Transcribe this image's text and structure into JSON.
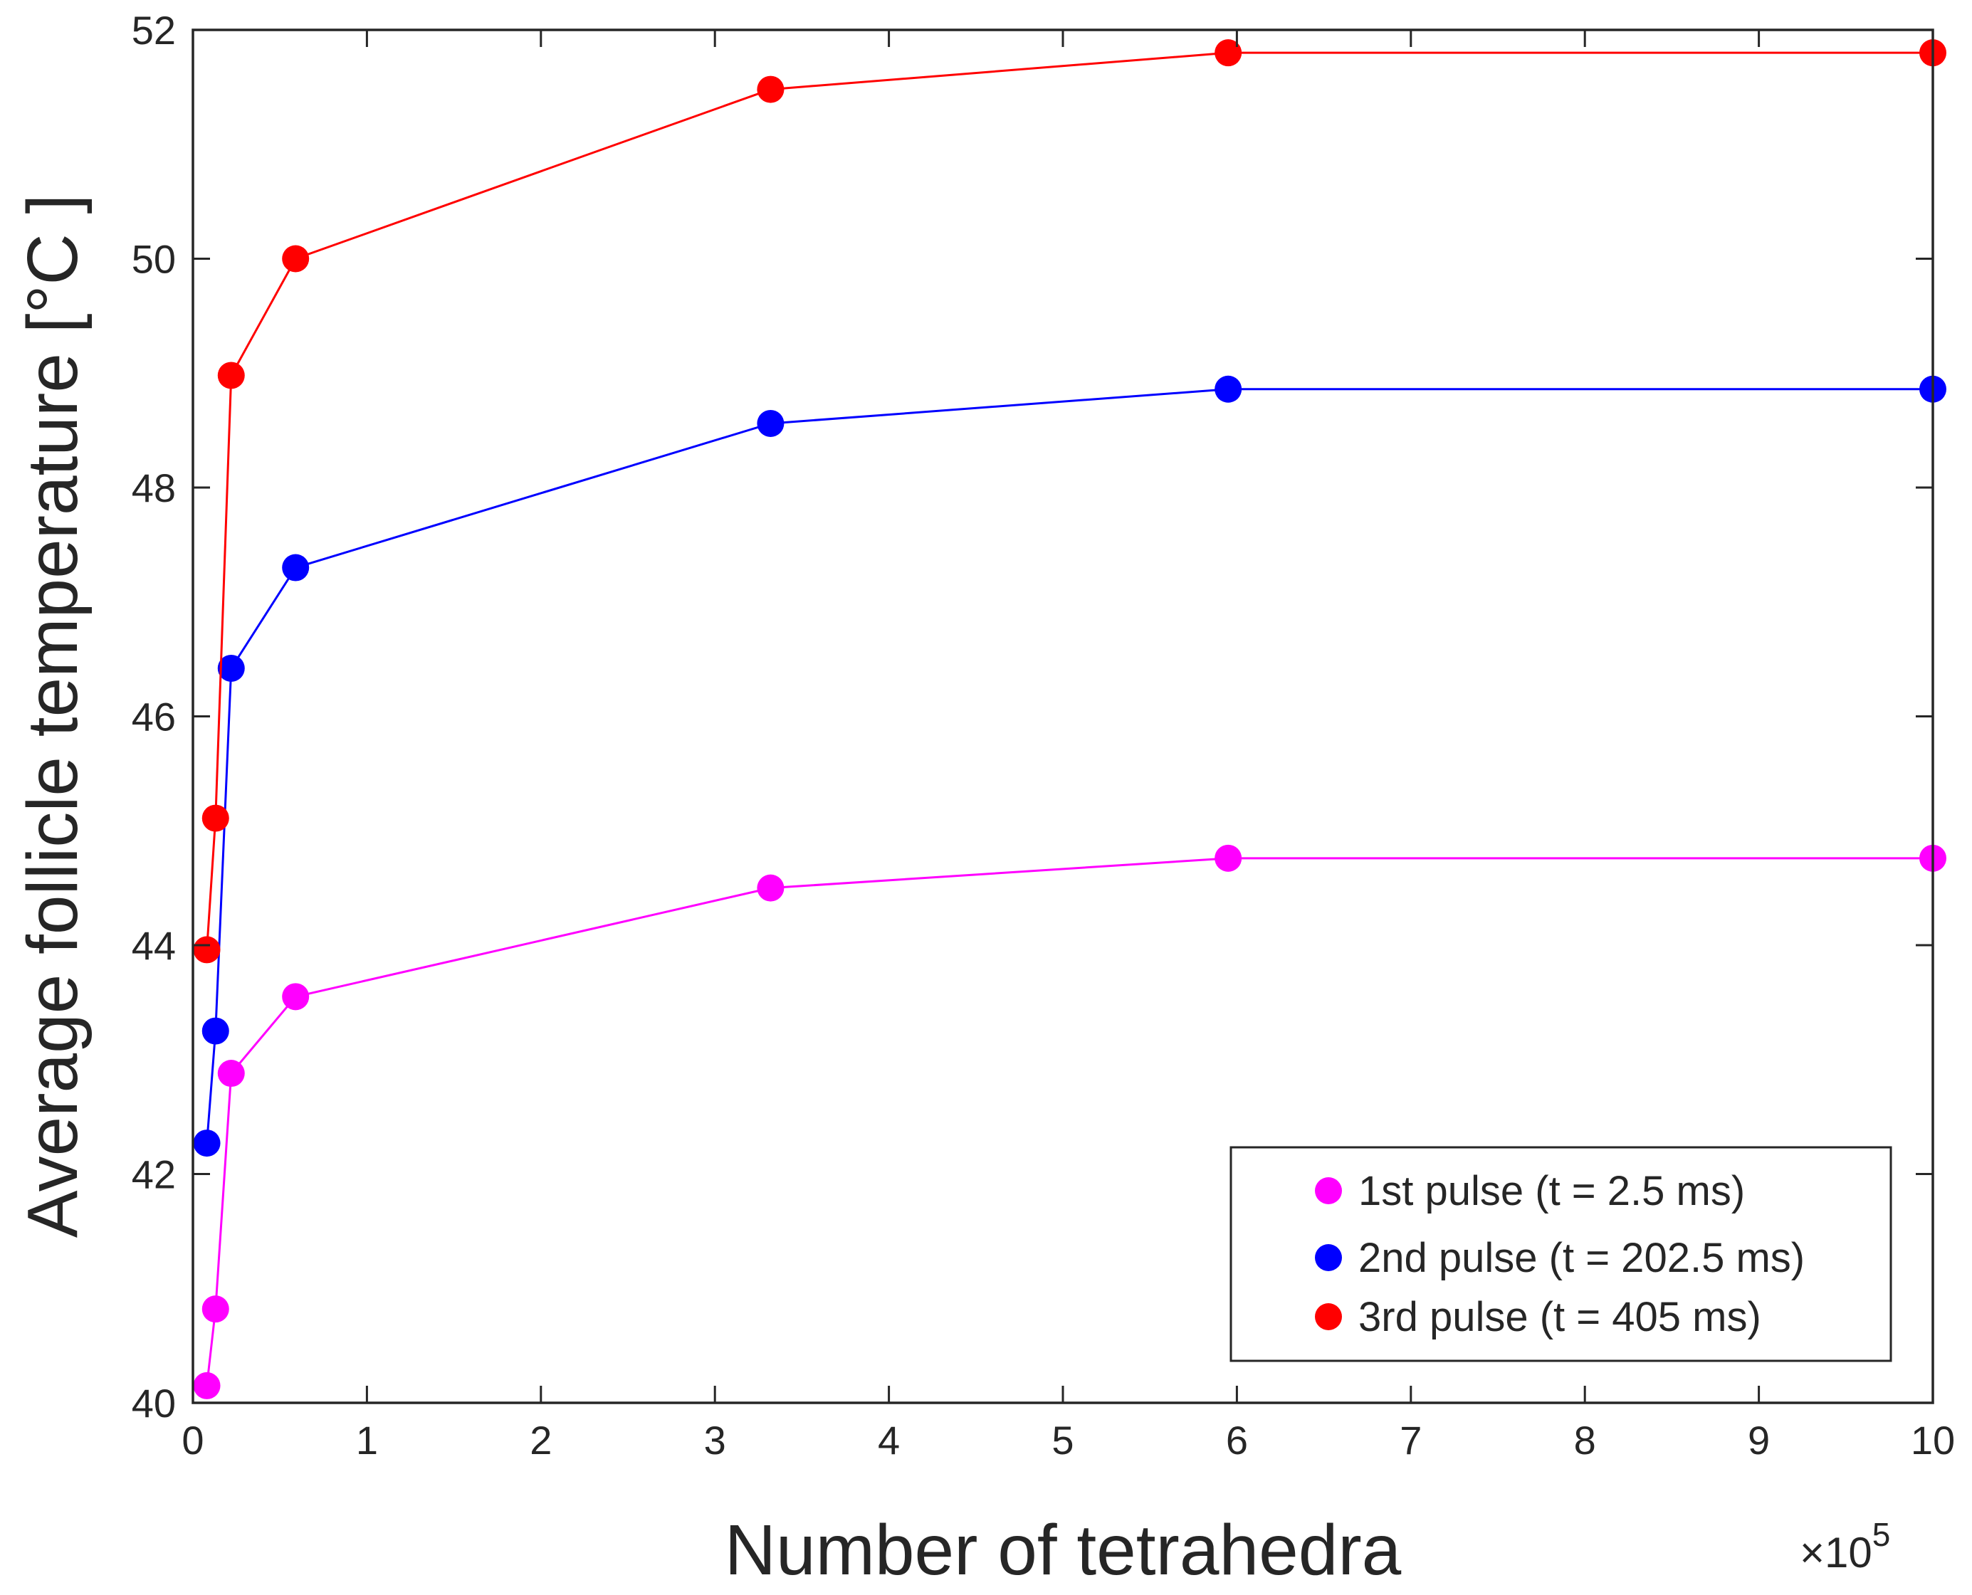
{
  "chart_data": {
    "type": "line",
    "title": "",
    "xlabel": "Number of tetrahedra",
    "ylabel": "Average follicle temperature [°C ]",
    "x_multiplier_label": "×10",
    "x_multiplier_exponent": "5",
    "xlim": [
      0,
      10
    ],
    "ylim": [
      40,
      52
    ],
    "xticks": [
      0,
      1,
      2,
      3,
      4,
      5,
      6,
      7,
      8,
      9,
      10
    ],
    "yticks": [
      40,
      42,
      44,
      46,
      48,
      50,
      52
    ],
    "grid": false,
    "legend_position": "bottom-right",
    "x": [
      0.08,
      0.13,
      0.22,
      0.59,
      3.32,
      5.95,
      10.0
    ],
    "series": [
      {
        "name": "1st pulse (t = 2.5 ms)",
        "color": "#ff00ff",
        "values": [
          40.15,
          40.82,
          42.88,
          43.55,
          44.5,
          44.76,
          44.76
        ]
      },
      {
        "name": "2nd pulse (t = 202.5 ms)",
        "color": "#0000ff",
        "values": [
          42.27,
          43.25,
          46.42,
          47.3,
          48.56,
          48.86,
          48.86
        ]
      },
      {
        "name": "3rd pulse (t = 405 ms)",
        "color": "#ff0000",
        "values": [
          43.96,
          45.11,
          48.98,
          50.0,
          51.48,
          51.8,
          51.8
        ]
      }
    ]
  }
}
